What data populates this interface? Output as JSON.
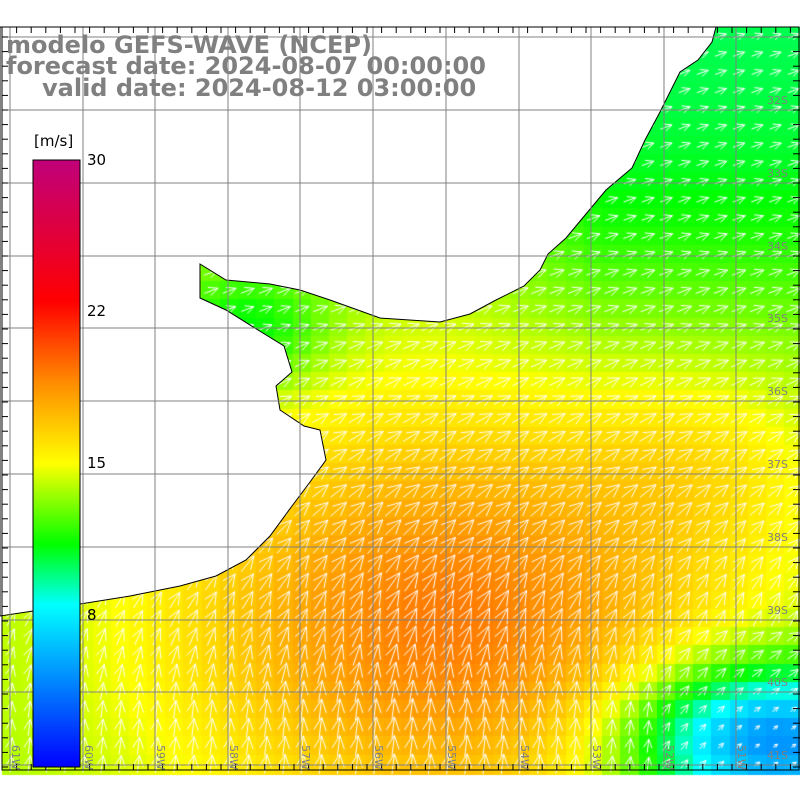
{
  "title": {
    "line1": "modelo GEFS-WAVE (NCEP)",
    "line2": "forecast date: 2024-08-07 00:00:00",
    "line3": "valid date: 2024-08-12 03:00:00"
  },
  "colorbar": {
    "unit": "[m/s]",
    "ticks": [
      "30",
      "22",
      "15",
      "8"
    ],
    "stops": [
      {
        "v": 0,
        "c": "#0000ff"
      },
      {
        "v": 4,
        "c": "#0080ff"
      },
      {
        "v": 8,
        "c": "#00ffff"
      },
      {
        "v": 11,
        "c": "#00ff00"
      },
      {
        "v": 15,
        "c": "#ffff00"
      },
      {
        "v": 19,
        "c": "#ff8c00"
      },
      {
        "v": 23,
        "c": "#ff0000"
      },
      {
        "v": 30,
        "c": "#c0007a"
      }
    ]
  },
  "map": {
    "lat_labels": [
      "32S",
      "33S",
      "34S",
      "35S",
      "36S",
      "37S",
      "38S",
      "39S",
      "40S",
      "41S"
    ],
    "lon_labels": [
      "61W",
      "60W",
      "59W",
      "58W",
      "57W",
      "56W",
      "55W",
      "54W",
      "53W",
      "52W",
      "51W"
    ]
  }
}
